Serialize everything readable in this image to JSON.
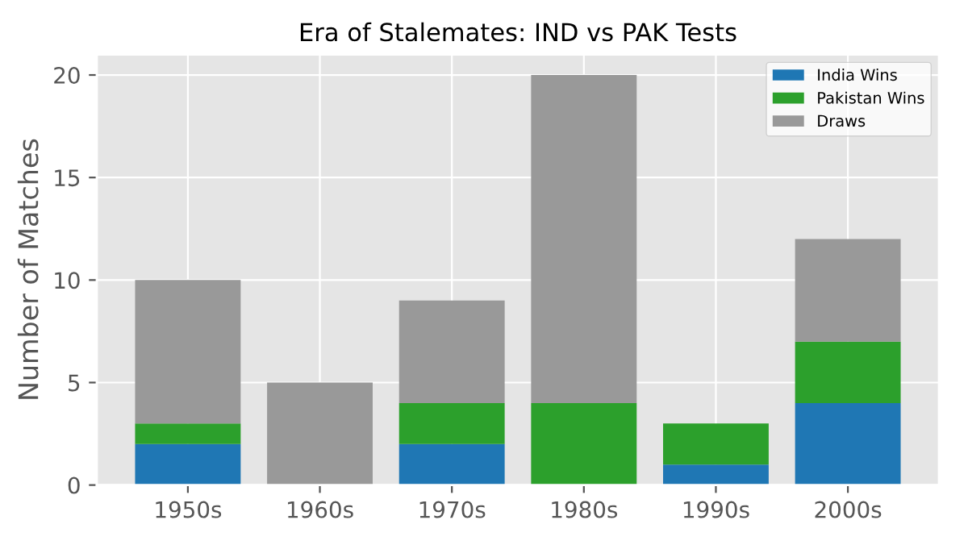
{
  "chart_data": {
    "type": "bar",
    "title": "Era of Stalemates: IND vs PAK Tests",
    "ylabel": "Number of Matches",
    "categories": [
      "1950s",
      "1960s",
      "1970s",
      "1980s",
      "1990s",
      "2000s"
    ],
    "stacked": true,
    "series": [
      {
        "name": "India Wins",
        "color": "#1f77b4",
        "values": [
          2,
          0,
          2,
          0,
          1,
          4
        ]
      },
      {
        "name": "Pakistan Wins",
        "color": "#2ca02c",
        "values": [
          1,
          0,
          2,
          4,
          2,
          3
        ]
      },
      {
        "name": "Draws",
        "color": "#999999",
        "values": [
          7,
          5,
          5,
          16,
          0,
          5
        ]
      }
    ],
    "ylim": [
      0,
      21
    ],
    "yticks": [
      0,
      5,
      10,
      15,
      20
    ],
    "grid": true,
    "legend": "top right"
  }
}
